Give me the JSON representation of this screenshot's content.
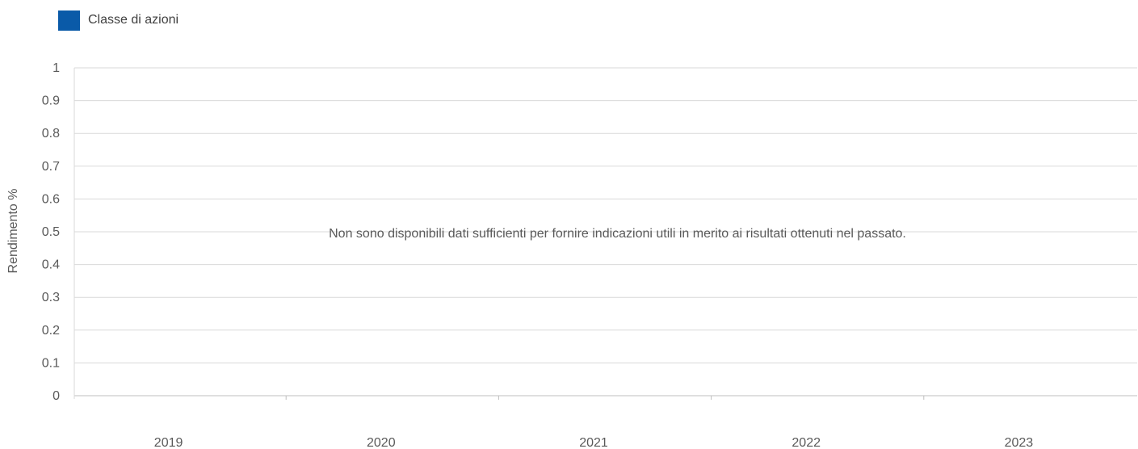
{
  "chart_data": {
    "type": "bar",
    "categories": [
      "2019",
      "2020",
      "2021",
      "2022",
      "2023"
    ],
    "series": [
      {
        "name": "Classe di azioni",
        "values": [
          null,
          null,
          null,
          null,
          null
        ],
        "color": "#0a5aa8"
      }
    ],
    "ylabel": "Rendimento %",
    "xlabel": "",
    "ylim": [
      0,
      1
    ],
    "yticks": [
      "0",
      "0.1",
      "0.2",
      "0.3",
      "0.4",
      "0.5",
      "0.6",
      "0.7",
      "0.8",
      "0.9",
      "1"
    ],
    "grid": true,
    "legend_position": "top-left",
    "annotation": "Non sono disponibili dati sufficienti per fornire indicazioni utili in merito ai risultati ottenuti nel passato."
  }
}
